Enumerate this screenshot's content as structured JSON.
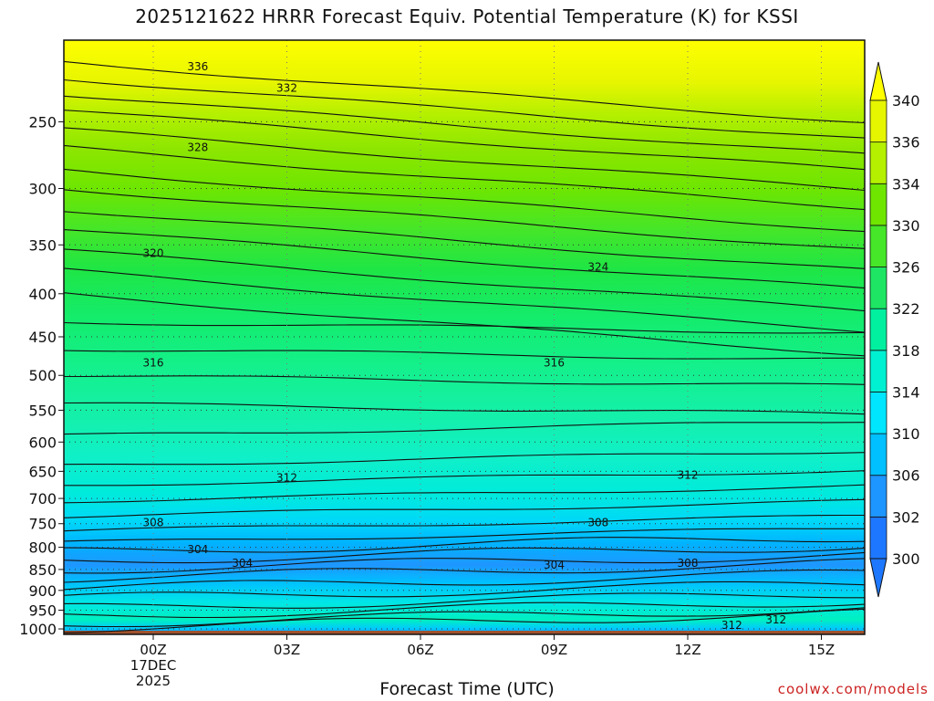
{
  "chart_data": {
    "type": "heatmap",
    "title": "2025121622 HRRR Forecast Equiv. Potential Temperature (K) for KSSI",
    "xlabel": "Forecast Time (UTC)",
    "ylabel": "",
    "x_ticks": [
      "00Z",
      "03Z",
      "06Z",
      "09Z",
      "12Z",
      "15Z"
    ],
    "x_date_label": [
      "17DEC",
      "2025"
    ],
    "y_ticks": [
      250,
      300,
      350,
      400,
      450,
      500,
      550,
      600,
      650,
      700,
      750,
      800,
      850,
      900,
      950,
      1000
    ],
    "ylim": [
      200,
      1015
    ],
    "y_scale": "log",
    "colorbar": {
      "ticks": [
        300,
        302,
        306,
        310,
        314,
        318,
        322,
        326,
        330,
        334,
        336,
        340
      ],
      "colors": [
        "#1e90ff",
        "#1ea2ff",
        "#00c8ff",
        "#00e6ff",
        "#00f0d2",
        "#00f5a0",
        "#00f064",
        "#1ee632",
        "#50e61e",
        "#8cf000",
        "#c8f500",
        "#f0f000",
        "#ffff00"
      ]
    },
    "contour_labels": [
      {
        "text": "336",
        "time": "00Z+",
        "pressure": 215
      },
      {
        "text": "332",
        "time": "03Z",
        "pressure": 228
      },
      {
        "text": "328",
        "time": "01Z",
        "pressure": 268
      },
      {
        "text": "320",
        "time": "00Z",
        "pressure": 358
      },
      {
        "text": "324",
        "time": "09Z+",
        "pressure": 372
      },
      {
        "text": "316",
        "time": "00Z",
        "pressure": 483
      },
      {
        "text": "316",
        "time": "09Z",
        "pressure": 483
      },
      {
        "text": "312",
        "time": "03Z",
        "pressure": 662
      },
      {
        "text": "312",
        "time": "12Z",
        "pressure": 657
      },
      {
        "text": "308",
        "time": "00Z",
        "pressure": 748
      },
      {
        "text": "308",
        "time": "09Z+",
        "pressure": 748
      },
      {
        "text": "308",
        "time": "12Z",
        "pressure": 836
      },
      {
        "text": "304",
        "time": "01Z",
        "pressure": 805
      },
      {
        "text": "304",
        "time": "02Z",
        "pressure": 836
      },
      {
        "text": "304",
        "time": "09Z",
        "pressure": 840
      },
      {
        "text": "312",
        "time": "14Z",
        "pressure": 975
      },
      {
        "text": "312",
        "time": "13Z",
        "pressure": 990
      }
    ],
    "grid": "dotted",
    "ground_color": "#a0522d"
  },
  "credit": "coolwx.com/models"
}
